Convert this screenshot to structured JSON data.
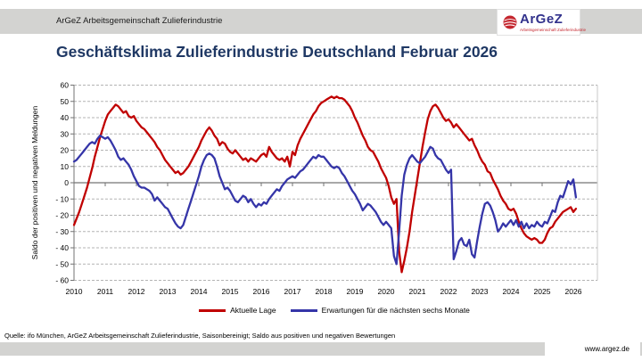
{
  "header": {
    "bar_text": "ArGeZ Arbeitsgemeinschaft Zulieferindustrie",
    "logo": {
      "wordmark": "ArGeZ",
      "subtext": "Arbeitsgemeinschaft Zulieferindustrie",
      "ball_color": "#c4262e",
      "wordmark_color": "#32328c"
    }
  },
  "title": "Geschäftsklima Zulieferindustrie Deutschland Februar 2026",
  "title_color": "#1f3864",
  "footer": {
    "source": "Quelle: ifo München, ArGeZ Arbeitsgemeinschaft Zulieferindustrie, Saisonbereinigt; Saldo aus positiven und negativen Bewertungen",
    "website": "www.argez.de"
  },
  "chart_data": {
    "type": "line",
    "ylabel": "Saldo der positiven und negativen Meldungen",
    "ylim": [
      -60,
      60
    ],
    "ytick_step": 10,
    "x_tick_years": [
      2010,
      2011,
      2012,
      2013,
      2014,
      2015,
      2016,
      2017,
      2018,
      2019,
      2020,
      2021,
      2022,
      2023,
      2024,
      2025,
      2026
    ],
    "x_start_year": 2010,
    "points_per_year": 12,
    "grid": "dashed horizontal, solid zero line",
    "legend_position": "bottom",
    "series": [
      {
        "name": "Aktuelle Lage",
        "color": "#c00000",
        "values": [
          -26,
          -22,
          -18,
          -13,
          -8,
          -3,
          3,
          9,
          16,
          22,
          28,
          33,
          38,
          42,
          44,
          46,
          48,
          47,
          45,
          43,
          44,
          41,
          40,
          41,
          38,
          36,
          34,
          33,
          31,
          29,
          27,
          25,
          22,
          20,
          17,
          14,
          12,
          10,
          8,
          6,
          7,
          5,
          6,
          8,
          10,
          13,
          16,
          19,
          22,
          26,
          29,
          32,
          34,
          32,
          29,
          27,
          23,
          25,
          24,
          21,
          19,
          18,
          20,
          18,
          16,
          14,
          15,
          13,
          15,
          14,
          13,
          15,
          17,
          18,
          16,
          22,
          19,
          17,
          15,
          14,
          15,
          13,
          16,
          10,
          19,
          17,
          23,
          27,
          30,
          33,
          36,
          39,
          42,
          44,
          47,
          49,
          50,
          51,
          52,
          53,
          52,
          53,
          52,
          52,
          51,
          49,
          47,
          44,
          40,
          37,
          33,
          29,
          26,
          22,
          20,
          19,
          16,
          13,
          9,
          6,
          3,
          -2,
          -9,
          -13,
          -10,
          -42,
          -55,
          -48,
          -40,
          -30,
          -18,
          -8,
          2,
          12,
          22,
          31,
          39,
          44,
          47,
          48,
          46,
          43,
          40,
          38,
          39,
          37,
          34,
          36,
          34,
          32,
          30,
          28,
          26,
          27,
          23,
          20,
          16,
          13,
          11,
          7,
          6,
          2,
          -1,
          -4,
          -8,
          -11,
          -13,
          -16,
          -17,
          -16,
          -19,
          -24,
          -28,
          -31,
          -33,
          -34,
          -35,
          -34,
          -35,
          -37,
          -37,
          -35,
          -31,
          -28,
          -27,
          -24,
          -22,
          -20,
          -18,
          -17,
          -16,
          -15,
          -18,
          -16
        ]
      },
      {
        "name": "Erwartungen für die nächsten sechs Monate",
        "color": "#3535a8",
        "values": [
          13,
          14,
          16,
          18,
          20,
          22,
          24,
          25,
          24,
          27,
          29,
          28,
          27,
          28,
          26,
          23,
          20,
          16,
          14,
          15,
          13,
          11,
          8,
          4,
          1,
          -2,
          -3,
          -3,
          -4,
          -5,
          -7,
          -11,
          -9,
          -11,
          -13,
          -15,
          -16,
          -19,
          -22,
          -25,
          -27,
          -28,
          -26,
          -21,
          -16,
          -11,
          -6,
          -1,
          4,
          10,
          14,
          17,
          18,
          17,
          15,
          10,
          4,
          0,
          -4,
          -3,
          -5,
          -8,
          -11,
          -12,
          -10,
          -8,
          -9,
          -12,
          -10,
          -13,
          -15,
          -13,
          -14,
          -12,
          -13,
          -10,
          -8,
          -6,
          -4,
          -5,
          -2,
          0,
          2,
          3,
          4,
          3,
          5,
          7,
          8,
          10,
          12,
          14,
          16,
          15,
          17,
          16,
          16,
          14,
          12,
          10,
          9,
          10,
          9,
          6,
          4,
          1,
          -2,
          -5,
          -7,
          -10,
          -13,
          -17,
          -15,
          -13,
          -14,
          -16,
          -18,
          -21,
          -24,
          -26,
          -24,
          -26,
          -28,
          -45,
          -50,
          -30,
          -8,
          5,
          11,
          15,
          17,
          15,
          13,
          12,
          14,
          16,
          19,
          22,
          21,
          17,
          15,
          14,
          11,
          8,
          6,
          8,
          -47,
          -42,
          -36,
          -34,
          -38,
          -39,
          -35,
          -44,
          -46,
          -36,
          -27,
          -19,
          -13,
          -12,
          -14,
          -18,
          -23,
          -30,
          -28,
          -25,
          -27,
          -25,
          -23,
          -26,
          -23,
          -27,
          -24,
          -28,
          -25,
          -28,
          -26,
          -27,
          -24,
          -26,
          -27,
          -24,
          -25,
          -21,
          -17,
          -18,
          -12,
          -8,
          -9,
          -4,
          1,
          -1,
          2,
          -9
        ]
      }
    ]
  }
}
